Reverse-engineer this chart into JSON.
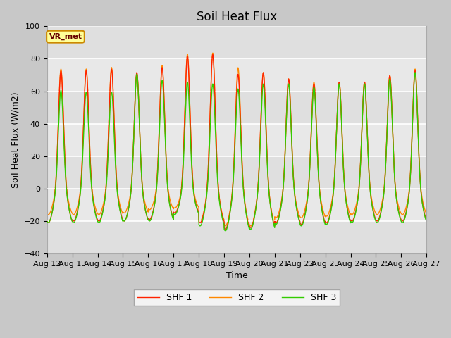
{
  "title": "Soil Heat Flux",
  "ylabel": "Soil Heat Flux (W/m2)",
  "xlabel": "Time",
  "ylim": [
    -40,
    100
  ],
  "yticks": [
    -40,
    -20,
    0,
    20,
    40,
    60,
    80,
    100
  ],
  "date_labels": [
    "Aug 12",
    "Aug 13",
    "Aug 14",
    "Aug 15",
    "Aug 16",
    "Aug 17",
    "Aug 18",
    "Aug 19",
    "Aug 20",
    "Aug 21",
    "Aug 22",
    "Aug 23",
    "Aug 24",
    "Aug 25",
    "Aug 26",
    "Aug 27"
  ],
  "colors": {
    "SHF 1": "#FF2200",
    "SHF 2": "#FF8800",
    "SHF 3": "#33CC00"
  },
  "legend_labels": [
    "SHF 1",
    "SHF 2",
    "SHF 3"
  ],
  "plot_bg": "#E8E8E8",
  "fig_bg": "#C8C8C8",
  "vr_met_label": "VR_met",
  "vr_met_bg": "#FFFF99",
  "vr_met_border": "#CC8800",
  "title_fontsize": 12,
  "axis_fontsize": 9,
  "tick_fontsize": 8,
  "n_days": 15,
  "peak_values_shf1": [
    73,
    73,
    74,
    72,
    75,
    82,
    83,
    71,
    72,
    68,
    65,
    66,
    66,
    70,
    73
  ],
  "peak_values_shf2": [
    74,
    74,
    75,
    71,
    76,
    83,
    84,
    75,
    72,
    68,
    66,
    66,
    66,
    70,
    74
  ],
  "peak_values_shf3": [
    61,
    60,
    60,
    71,
    67,
    66,
    65,
    62,
    65,
    65,
    63,
    65,
    65,
    68,
    72
  ],
  "trough_values_shf1": [
    -21,
    -20,
    -20,
    -20,
    -19,
    -15,
    -21,
    -25,
    -24,
    -21,
    -22,
    -21,
    -20,
    -20,
    -20
  ],
  "trough_values_shf2": [
    -16,
    -16,
    -16,
    -15,
    -13,
    -12,
    -20,
    -23,
    -23,
    -18,
    -18,
    -17,
    -16,
    -16,
    -16
  ],
  "trough_values_shf3": [
    -21,
    -21,
    -21,
    -20,
    -20,
    -16,
    -23,
    -26,
    -25,
    -22,
    -23,
    -22,
    -21,
    -21,
    -21
  ]
}
